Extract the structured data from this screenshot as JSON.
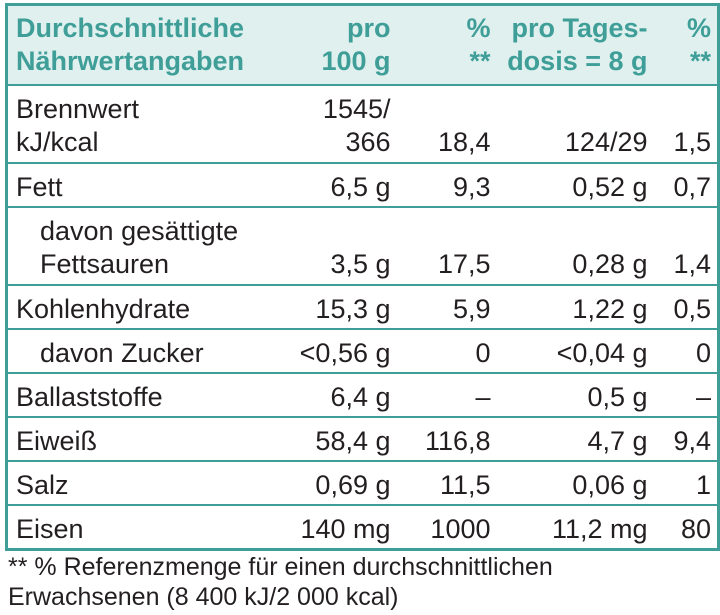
{
  "table": {
    "header": {
      "label_line1": "Durchschnittliche",
      "label_line2": "Nährwertangaben",
      "per100_line1": "pro",
      "per100_line2": "100 g",
      "pct1_line1": "%",
      "pct1_line2": "**",
      "perdose_line1": "pro Tages-",
      "perdose_line2": "dosis = 8 g",
      "pct2_line1": "%",
      "pct2_line2": "**"
    },
    "rows": [
      {
        "label_line1": "Brennwert",
        "label_line2": "kJ/kcal",
        "per100_line1": "1545/",
        "per100_line2": "366",
        "pct1": "18,4",
        "perdose": "124/29",
        "pct2": "1,5"
      },
      {
        "label": "Fett",
        "per100": "6,5 g",
        "pct1": "9,3",
        "perdose": "0,52 g",
        "pct2": "0,7"
      },
      {
        "label_line1": "davon gesättigte",
        "label_line2": "Fettsauren",
        "per100": "3,5 g",
        "pct1": "17,5",
        "perdose": "0,28 g",
        "pct2": "1,4"
      },
      {
        "label": "Kohlenhydrate",
        "per100": "15,3 g",
        "pct1": "5,9",
        "perdose": "1,22 g",
        "pct2": "0,5"
      },
      {
        "label": "davon Zucker",
        "per100": "<0,56 g",
        "pct1": "0",
        "perdose": "<0,04 g",
        "pct2": "0"
      },
      {
        "label": "Ballaststoffe",
        "per100": "6,4 g",
        "pct1": "–",
        "perdose": "0,5 g",
        "pct2": "–"
      },
      {
        "label": "Eiweiß",
        "per100": "58,4 g",
        "pct1": "116,8",
        "perdose": "4,7 g",
        "pct2": "9,4"
      },
      {
        "label": "Salz",
        "per100": "0,69 g",
        "pct1": "11,5",
        "perdose": "0,06 g",
        "pct2": "1"
      },
      {
        "label": "Eisen",
        "per100": "140 mg",
        "pct1": "1000",
        "perdose": "11,2 mg",
        "pct2": "80"
      }
    ]
  },
  "footnote": {
    "line1": "** % Referenzmenge für einen durchschnittlichen",
    "line2": "Erwachsenen (8 400 kJ/2 000 kcal)"
  },
  "colors": {
    "accent": "#3f9e98",
    "header_bg": "#dff0ee",
    "text": "#231f20"
  }
}
